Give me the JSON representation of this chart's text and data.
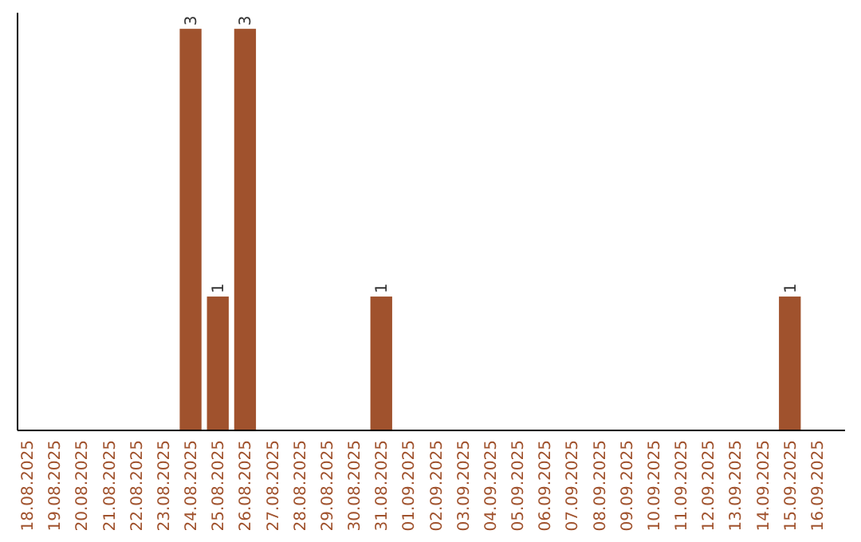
{
  "chart_data": {
    "type": "bar",
    "categories": [
      "18.08.2025",
      "19.08.2025",
      "20.08.2025",
      "21.08.2025",
      "22.08.2025",
      "23.08.2025",
      "24.08.2025",
      "25.08.2025",
      "26.08.2025",
      "27.08.2025",
      "28.08.2025",
      "29.08.2025",
      "30.08.2025",
      "31.08.2025",
      "01.09.2025",
      "02.09.2025",
      "03.09.2025",
      "04.09.2025",
      "05.09.2025",
      "06.09.2025",
      "07.09.2025",
      "08.09.2025",
      "09.09.2025",
      "10.09.2025",
      "11.09.2025",
      "12.09.2025",
      "13.09.2025",
      "14.09.2025",
      "15.09.2025",
      "16.09.2025"
    ],
    "values": [
      0,
      0,
      0,
      0,
      0,
      0,
      3,
      1,
      3,
      0,
      0,
      0,
      0,
      1,
      0,
      0,
      0,
      0,
      0,
      0,
      0,
      0,
      0,
      0,
      0,
      0,
      0,
      0,
      1,
      0
    ],
    "value_labels": [
      null,
      null,
      null,
      null,
      null,
      null,
      "3",
      "1",
      "3",
      null,
      null,
      null,
      null,
      "1",
      null,
      null,
      null,
      null,
      null,
      null,
      null,
      null,
      null,
      null,
      null,
      null,
      null,
      null,
      "1",
      null
    ],
    "color": "#a0522d"
  }
}
